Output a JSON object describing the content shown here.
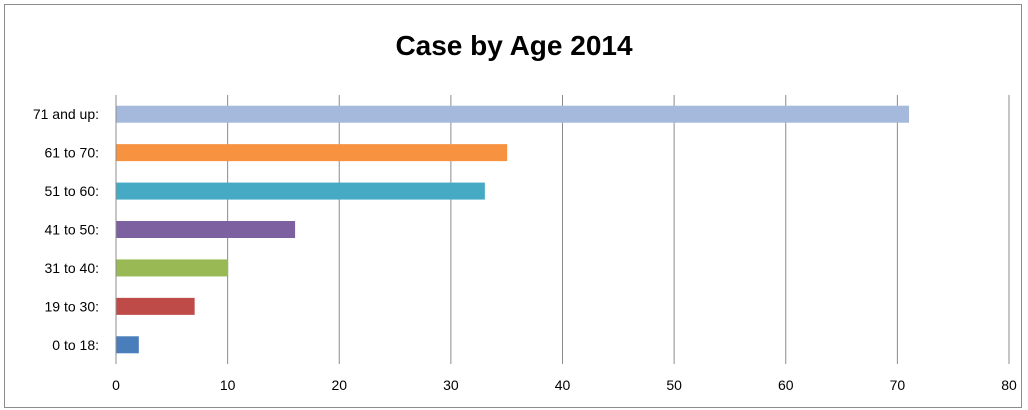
{
  "chart_data": {
    "type": "bar",
    "orientation": "horizontal",
    "title": "Case by Age 2014",
    "xlabel": "",
    "ylabel": "",
    "categories": [
      "0 to 18:",
      "19 to 30:",
      "31 to 40:",
      "41 to 50:",
      "51 to 60:",
      "61 to 70:",
      "71 and up:"
    ],
    "values": [
      2,
      7,
      10,
      16,
      33,
      35,
      71
    ],
    "colors": [
      "#4a7ebb",
      "#be4b48",
      "#98b954",
      "#7d60a0",
      "#46aac5",
      "#f69240",
      "#a5b9dd"
    ],
    "xlim": [
      0,
      80
    ],
    "xticks": [
      0,
      10,
      20,
      30,
      40,
      50,
      60,
      70,
      80
    ],
    "grid": "vertical",
    "legend": "none"
  },
  "style": {
    "grid_color": "#8c8c8c",
    "axis_color": "#8c8c8c"
  }
}
